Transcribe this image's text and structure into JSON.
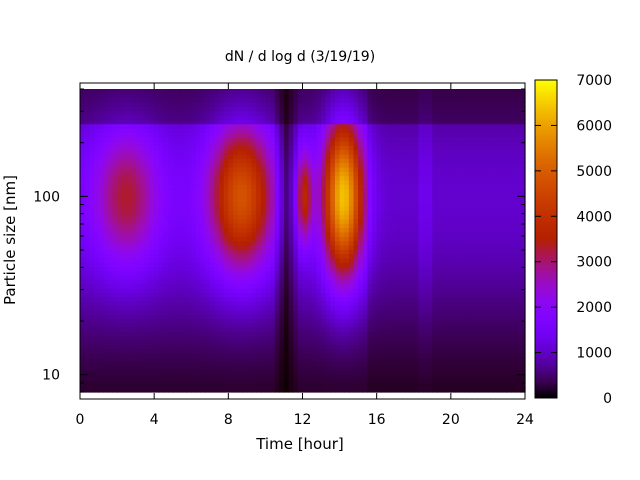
{
  "chart_data": {
    "type": "heatmap",
    "title": "dN / d log d (3/19/19)",
    "xlabel": "Time [hour]",
    "ylabel": "Particle size [nm]",
    "x_range": [
      0,
      24
    ],
    "x_ticks": [
      0,
      4,
      8,
      12,
      16,
      20,
      24
    ],
    "y_scale": "log",
    "y_range_nm": [
      8,
      400
    ],
    "y_ticks": [
      10,
      100
    ],
    "colorbar": {
      "range": [
        0,
        7000
      ],
      "ticks": [
        0,
        1000,
        2000,
        3000,
        4000,
        5000,
        6000,
        7000
      ],
      "colormap": "gnuplot (black-purple-red-orange-yellow)"
    },
    "hot_spots": [
      {
        "time_hour": 2.5,
        "size_nm": 100,
        "peak_value": 3300
      },
      {
        "time_hour": 8.7,
        "size_nm": 100,
        "peak_value": 4800
      },
      {
        "time_hour": 12.1,
        "size_nm": 100,
        "peak_value": 3600
      },
      {
        "time_hour": 14.2,
        "size_nm": 100,
        "peak_value": 6400
      }
    ],
    "grid": false
  }
}
